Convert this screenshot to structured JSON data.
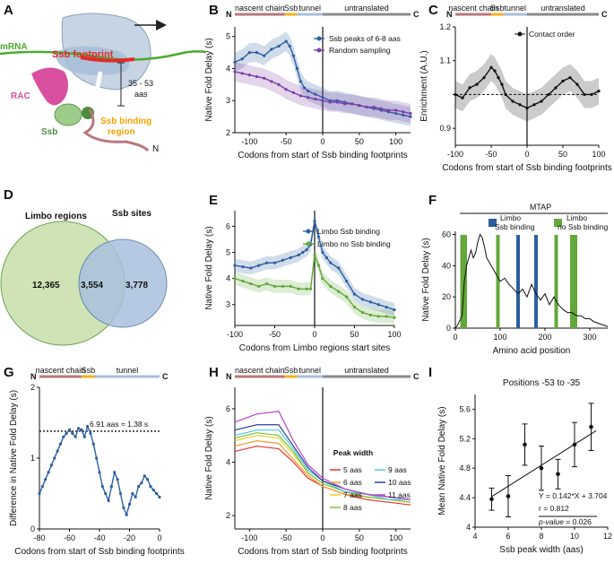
{
  "panels": {
    "A": {
      "label": "A",
      "mrna": "mRNA",
      "footprint": "Ssb footprint",
      "rac": "RAC",
      "ssb": "Ssb",
      "binding": [
        "Ssb binding",
        "region"
      ],
      "length": [
        "35 - 53",
        "aas"
      ],
      "n_term": "N"
    },
    "B": {
      "label": "B"
    },
    "C": {
      "label": "C"
    },
    "D": {
      "label": "D"
    },
    "E": {
      "label": "E"
    },
    "F": {
      "label": "F"
    },
    "G": {
      "label": "G"
    },
    "H": {
      "label": "H"
    },
    "I": {
      "label": "I"
    }
  },
  "colors": {
    "nascent": "#b8777e",
    "ssb": "#f5b022",
    "tunnel": "#a9bfd8",
    "untranslated": "#8a8a8a",
    "blue": "#2c5fa0",
    "purple": "#7b3fa8",
    "green": "#62a83a",
    "venn_green": "#cfe3b6",
    "venn_blue": "#a9c1dd"
  },
  "chart_data": [
    {
      "panel": "B",
      "type": "line",
      "title": "",
      "xlabel": "Codons from start of Ssb binding footprints",
      "ylabel": "Native Fold Delay (s)",
      "xlim": [
        -120,
        120
      ],
      "ylim": [
        2,
        5.3
      ],
      "xticks": [
        -100,
        -50,
        0,
        50,
        100
      ],
      "yticks": [
        2,
        3,
        4,
        5
      ],
      "regions": [
        {
          "name": "nascent chain",
          "from": -120,
          "to": -52
        },
        {
          "name": "Ssb",
          "from": -52,
          "to": -35
        },
        {
          "name": "tunnel",
          "from": -35,
          "to": 0
        },
        {
          "name": "untranslated",
          "from": 0,
          "to": 120
        }
      ],
      "ends": [
        "N",
        "C"
      ],
      "series": [
        {
          "name": "Ssb peaks of 6-8 aas",
          "color": "#2c5fa0",
          "x": [
            -120,
            -110,
            -100,
            -90,
            -80,
            -70,
            -60,
            -50,
            -45,
            -40,
            -35,
            -30,
            -25,
            -20,
            -10,
            0,
            10,
            20,
            30,
            40,
            50,
            60,
            70,
            80,
            90,
            100,
            110,
            120
          ],
          "values": [
            4.2,
            4.3,
            4.5,
            4.5,
            4.4,
            4.6,
            4.7,
            4.85,
            4.7,
            4.4,
            4.0,
            3.6,
            3.4,
            3.3,
            3.2,
            3.1,
            3.0,
            3.0,
            2.95,
            2.9,
            2.85,
            2.8,
            2.75,
            2.7,
            2.65,
            2.6,
            2.55,
            2.5
          ]
        },
        {
          "name": "Random sampling",
          "color": "#7b3fa8",
          "x": [
            -120,
            -110,
            -100,
            -90,
            -80,
            -70,
            -60,
            -50,
            -40,
            -30,
            -20,
            -10,
            0,
            10,
            20,
            30,
            40,
            50,
            60,
            70,
            80,
            90,
            100,
            110,
            120
          ],
          "values": [
            3.9,
            3.85,
            3.8,
            3.75,
            3.7,
            3.6,
            3.5,
            3.35,
            3.25,
            3.15,
            3.1,
            3.05,
            3.0,
            2.95,
            2.95,
            2.9,
            2.9,
            2.85,
            2.8,
            2.8,
            2.75,
            2.7,
            2.7,
            2.65,
            2.6
          ]
        }
      ]
    },
    {
      "panel": "C",
      "type": "line",
      "xlabel": "Codons from start of Ssb binding footprints",
      "ylabel": "Enrichment (A.U.)",
      "xlim": [
        -100,
        100
      ],
      "ylim": [
        0.85,
        1.2
      ],
      "xticks": [
        -100,
        -50,
        0,
        50,
        100
      ],
      "yticks": [
        0.9,
        1.0,
        1.1,
        1.2
      ],
      "ytick_labels": [
        "0.9",
        "",
        "1.1",
        "1.2"
      ],
      "regions": [
        {
          "name": "nascent chain",
          "from": -100,
          "to": -50
        },
        {
          "name": "Ssb",
          "from": -50,
          "to": -33
        },
        {
          "name": "tunnel",
          "from": -33,
          "to": 0
        },
        {
          "name": "untranslated",
          "from": 0,
          "to": 100
        }
      ],
      "ends": [
        "N",
        "C"
      ],
      "reference_line": 1.0,
      "series": [
        {
          "name": "Contact order",
          "color": "#111111",
          "x": [
            -100,
            -90,
            -80,
            -70,
            -60,
            -50,
            -45,
            -40,
            -35,
            -30,
            -20,
            -10,
            0,
            10,
            20,
            30,
            40,
            50,
            60,
            70,
            80,
            90,
            100
          ],
          "values": [
            1.0,
            0.99,
            1.02,
            1.03,
            1.05,
            1.08,
            1.07,
            1.05,
            1.03,
            1.0,
            0.98,
            0.97,
            0.96,
            0.97,
            0.98,
            1.0,
            1.02,
            1.04,
            1.05,
            1.03,
            1.0,
            1.0,
            1.01
          ]
        }
      ]
    },
    {
      "panel": "D",
      "type": "venn",
      "sets": [
        {
          "name": "Limbo regions",
          "only": "12,365",
          "color": "#cfe3b6"
        },
        {
          "name": "Ssb sites",
          "only": "3,778",
          "color": "#a9c1dd"
        }
      ],
      "overlap": "3,554"
    },
    {
      "panel": "E",
      "type": "line",
      "xlabel": "Codons from Limbo regions start sites",
      "ylabel": "Native Fold Delay (s)",
      "xlim": [
        -100,
        100
      ],
      "ylim": [
        2.2,
        6.6
      ],
      "xticks": [
        -100,
        -50,
        0,
        50,
        100
      ],
      "yticks": [
        3,
        4,
        5,
        6
      ],
      "series": [
        {
          "name": "Limbo Ssb binding",
          "color": "#2c5fa0",
          "x": [
            -100,
            -90,
            -80,
            -70,
            -60,
            -50,
            -40,
            -30,
            -20,
            -15,
            -10,
            -5,
            0,
            5,
            10,
            15,
            20,
            30,
            40,
            50,
            60,
            70,
            80,
            90,
            100
          ],
          "values": [
            4.5,
            4.45,
            4.4,
            4.5,
            4.6,
            4.6,
            4.7,
            4.8,
            4.9,
            5.0,
            5.1,
            5.3,
            6.2,
            5.6,
            5.0,
            4.8,
            4.6,
            4.4,
            3.9,
            3.4,
            3.2,
            3.1,
            3.0,
            2.9,
            2.8
          ]
        },
        {
          "name": "Limbo no Ssb binding",
          "color": "#62a83a",
          "x": [
            -100,
            -90,
            -80,
            -70,
            -60,
            -50,
            -40,
            -30,
            -20,
            -10,
            -5,
            0,
            5,
            10,
            20,
            30,
            40,
            50,
            60,
            70,
            80,
            90,
            100
          ],
          "values": [
            4.0,
            3.9,
            3.8,
            3.7,
            3.8,
            3.7,
            3.7,
            3.7,
            3.6,
            3.6,
            3.6,
            4.9,
            4.5,
            4.0,
            3.7,
            3.5,
            3.3,
            2.9,
            2.7,
            2.6,
            2.55,
            2.55,
            2.5
          ]
        }
      ]
    },
    {
      "panel": "F",
      "type": "line",
      "title": "MTAP",
      "xlabel": "Amino acid position",
      "ylabel": "Native Fold Delay (s)",
      "xlim": [
        0,
        340
      ],
      "ylim": [
        0,
        62
      ],
      "xticks": [
        0,
        100,
        200,
        300
      ],
      "yticks": [
        0,
        20,
        40,
        60
      ],
      "legend": [
        {
          "name": "Limbo Ssb binding",
          "color": "#2c5fa0"
        },
        {
          "name": "Limbo no Ssb binding",
          "color": "#62a83a"
        }
      ],
      "blue_sites": [
        140,
        180
      ],
      "green_sites": [
        15,
        22,
        95,
        225,
        260,
        268
      ],
      "series": [
        {
          "name": "MTAP delay",
          "color": "#111111",
          "x": [
            0,
            5,
            10,
            15,
            20,
            25,
            30,
            35,
            40,
            45,
            50,
            55,
            60,
            65,
            70,
            80,
            90,
            100,
            110,
            120,
            130,
            140,
            150,
            160,
            170,
            180,
            190,
            200,
            210,
            220,
            230,
            240,
            250,
            260,
            270,
            280,
            290,
            300,
            310,
            320,
            330,
            340
          ],
          "values": [
            0,
            2,
            5,
            8,
            30,
            40,
            45,
            50,
            45,
            48,
            55,
            60,
            58,
            52,
            45,
            40,
            35,
            30,
            32,
            28,
            25,
            22,
            25,
            20,
            28,
            22,
            18,
            22,
            15,
            20,
            15,
            12,
            10,
            10,
            8,
            8,
            6,
            6,
            4,
            3,
            2,
            1
          ]
        }
      ]
    },
    {
      "panel": "G",
      "type": "line",
      "xlabel": "Codons from start of Ssb binding footprints",
      "ylabel": "Difference in Native Fold Delay (s)",
      "xlim": [
        -80,
        0
      ],
      "ylim": [
        0,
        2
      ],
      "xticks": [
        -80,
        -60,
        -40,
        -20,
        0
      ],
      "yticks": [
        0,
        1,
        2
      ],
      "regions": [
        {
          "name": "nascent chain",
          "from": -80,
          "to": -52
        },
        {
          "name": "Ssb",
          "from": -52,
          "to": -43
        },
        {
          "name": "tunnel",
          "from": -43,
          "to": 0
        }
      ],
      "ends": [
        "N",
        "C"
      ],
      "threshold": 1.38,
      "annotation": "6.91 aas ≈ 1.38 s",
      "series": [
        {
          "name": "Difference",
          "color": "#2c5fa0",
          "x": [
            -80,
            -78,
            -76,
            -74,
            -72,
            -70,
            -68,
            -66,
            -64,
            -62,
            -60,
            -58,
            -56,
            -54,
            -52,
            -50,
            -48,
            -46,
            -44,
            -42,
            -40,
            -38,
            -36,
            -34,
            -32,
            -30,
            -28,
            -26,
            -24,
            -22,
            -20,
            -18,
            -16,
            -14,
            -12,
            -10,
            -8,
            -6,
            -4,
            -2,
            0
          ],
          "values": [
            0.5,
            0.6,
            0.7,
            0.8,
            0.9,
            1.0,
            1.1,
            1.2,
            1.3,
            1.35,
            1.4,
            1.35,
            1.3,
            1.42,
            1.4,
            1.3,
            1.45,
            1.35,
            1.2,
            1.0,
            0.8,
            0.6,
            0.5,
            0.4,
            0.6,
            0.8,
            0.7,
            0.5,
            0.3,
            0.2,
            0.35,
            0.5,
            0.45,
            0.6,
            0.65,
            0.75,
            0.7,
            0.6,
            0.55,
            0.5,
            0.45
          ]
        }
      ]
    },
    {
      "panel": "H",
      "type": "line",
      "xlabel": "Codons from start of Ssb binding footprints",
      "ylabel": "Native Fold Delay (s)",
      "xlim": [
        -120,
        120
      ],
      "ylim": [
        1.5,
        6.8
      ],
      "xticks": [
        -100,
        -50,
        0,
        50,
        100
      ],
      "yticks": [
        2,
        4,
        6
      ],
      "regions": [
        {
          "name": "nascent chain",
          "from": -120,
          "to": -52
        },
        {
          "name": "Ssb",
          "from": -52,
          "to": -35
        },
        {
          "name": "tunnel",
          "from": -35,
          "to": 0
        },
        {
          "name": "untranslated",
          "from": 0,
          "to": 120
        }
      ],
      "ends": [
        "N",
        "C"
      ],
      "legend_title": "Peak width",
      "series": [
        {
          "name": "5 aas",
          "color": "#e8312c",
          "x": [
            -120,
            -90,
            -60,
            -40,
            -20,
            0,
            30,
            60,
            90,
            120
          ],
          "values": [
            4.4,
            4.6,
            4.5,
            4.0,
            3.4,
            3.1,
            2.8,
            2.6,
            2.5,
            2.4
          ]
        },
        {
          "name": "6 aas",
          "color": "#f29a2b",
          "x": [
            -120,
            -90,
            -60,
            -40,
            -20,
            0,
            30,
            60,
            90,
            120
          ],
          "values": [
            4.6,
            4.8,
            4.7,
            4.1,
            3.5,
            3.1,
            2.8,
            2.7,
            2.6,
            2.5
          ]
        },
        {
          "name": "7 aas",
          "color": "#e6d230",
          "x": [
            -120,
            -90,
            -60,
            -40,
            -20,
            0,
            30,
            60,
            90,
            120
          ],
          "values": [
            4.8,
            5.0,
            4.9,
            4.3,
            3.6,
            3.2,
            2.9,
            2.7,
            2.6,
            2.5
          ]
        },
        {
          "name": "8 aas",
          "color": "#7cc242",
          "x": [
            -120,
            -90,
            -60,
            -40,
            -20,
            0,
            30,
            60,
            90,
            120
          ],
          "values": [
            4.9,
            5.1,
            5.0,
            4.4,
            3.6,
            3.2,
            2.9,
            2.7,
            2.6,
            2.5
          ]
        },
        {
          "name": "9 aas",
          "color": "#4ccbd9",
          "x": [
            -120,
            -90,
            -60,
            -40,
            -20,
            0,
            30,
            60,
            90,
            120
          ],
          "values": [
            5.0,
            5.2,
            5.2,
            4.5,
            3.7,
            3.3,
            2.9,
            2.8,
            2.6,
            2.6
          ]
        },
        {
          "name": "10 aas",
          "color": "#2b3f9a",
          "x": [
            -120,
            -90,
            -60,
            -40,
            -20,
            0,
            30,
            60,
            90,
            120
          ],
          "values": [
            5.2,
            5.4,
            5.4,
            4.6,
            3.8,
            3.3,
            3.0,
            2.8,
            2.7,
            2.6
          ]
        },
        {
          "name": "11 aas",
          "color": "#b445c8",
          "x": [
            -120,
            -90,
            -60,
            -40,
            -20,
            0,
            30,
            60,
            90,
            120
          ],
          "values": [
            5.5,
            5.8,
            5.9,
            4.8,
            3.9,
            3.4,
            3.0,
            2.8,
            2.7,
            2.6
          ]
        }
      ]
    },
    {
      "panel": "I",
      "type": "scatter",
      "title": "Positions -53 to -35",
      "xlabel": "Ssb peak width (aas)",
      "ylabel": "Mean Native Fold Delay (s)",
      "xlim": [
        4,
        12
      ],
      "ylim": [
        4.0,
        5.8
      ],
      "xticks": [
        4,
        6,
        8,
        10,
        12
      ],
      "yticks": [
        4.0,
        4.4,
        4.8,
        5.2,
        5.6
      ],
      "points": [
        {
          "x": 5,
          "y": 4.38,
          "err": 0.15
        },
        {
          "x": 6,
          "y": 4.42,
          "err": 0.28
        },
        {
          "x": 7,
          "y": 5.12,
          "err": 0.28
        },
        {
          "x": 8,
          "y": 4.8,
          "err": 0.3
        },
        {
          "x": 9,
          "y": 4.72,
          "err": 0.2
        },
        {
          "x": 10,
          "y": 5.12,
          "err": 0.3
        },
        {
          "x": 11,
          "y": 5.36,
          "err": 0.32
        }
      ],
      "fit": {
        "slope": 0.142,
        "intercept": 3.704
      },
      "stats": [
        "Y = 0.142*X + 3.704",
        "r = 0.812",
        "p-value = 0.026"
      ]
    }
  ]
}
